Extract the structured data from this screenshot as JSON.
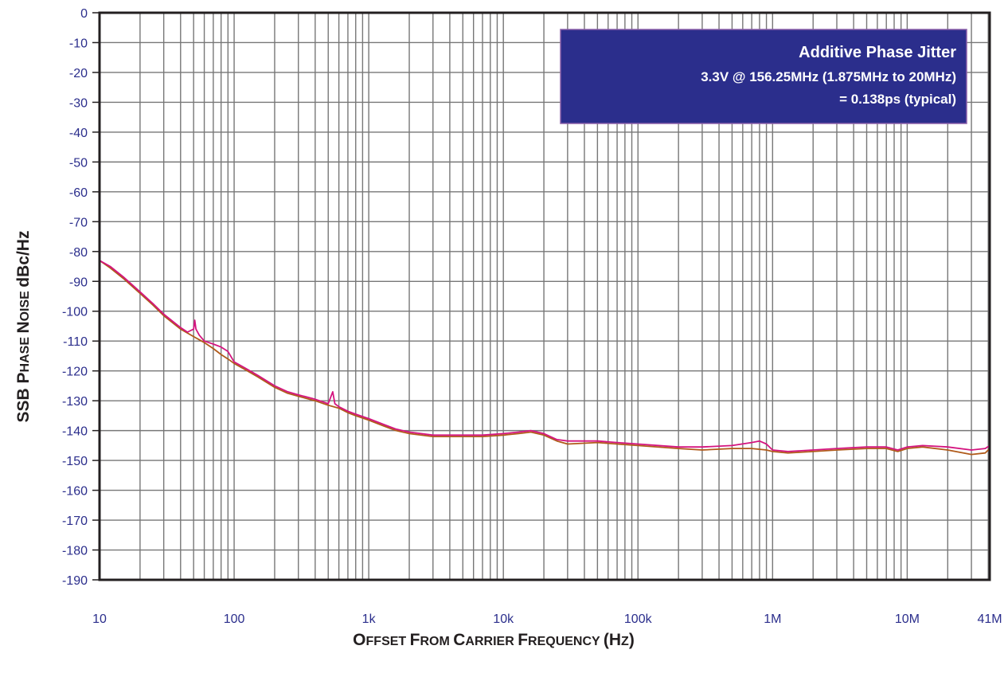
{
  "chart_data": {
    "type": "line",
    "title": "",
    "xlabel_parts": [
      {
        "text": "O",
        "big": true
      },
      {
        "text": "FFSET ",
        "big": false
      },
      {
        "text": "F",
        "big": true
      },
      {
        "text": "ROM ",
        "big": false
      },
      {
        "text": "C",
        "big": true
      },
      {
        "text": "ARRIER ",
        "big": false
      },
      {
        "text": "F",
        "big": true
      },
      {
        "text": "REQUENCY ",
        "big": false
      },
      {
        "text": "(H",
        "big": true
      },
      {
        "text": "Z",
        "big": false
      },
      {
        "text": ")",
        "big": true
      }
    ],
    "ylabel_parts": [
      {
        "text": "SSB P",
        "big": true
      },
      {
        "text": "HASE ",
        "big": false
      },
      {
        "text": "N",
        "big": true
      },
      {
        "text": "OISE ",
        "big": false
      },
      {
        "text": "dBc/Hz",
        "big": true
      }
    ],
    "x_scale": "log",
    "xlim": [
      10,
      41000000
    ],
    "ylim": [
      -190,
      0
    ],
    "grid": true,
    "x_ticks": [
      {
        "value": 10,
        "label": "10"
      },
      {
        "value": 100,
        "label": "100"
      },
      {
        "value": 1000,
        "label": "1k"
      },
      {
        "value": 10000,
        "label": "10k"
      },
      {
        "value": 100000,
        "label": "100k"
      },
      {
        "value": 1000000,
        "label": "1M"
      },
      {
        "value": 10000000,
        "label": "10M"
      },
      {
        "value": 41000000,
        "label": "41M"
      }
    ],
    "y_ticks": [
      0,
      -10,
      -20,
      -30,
      -40,
      -50,
      -60,
      -70,
      -80,
      -90,
      -100,
      -110,
      -120,
      -130,
      -140,
      -150,
      -160,
      -170,
      -180,
      -190
    ],
    "legend": {
      "placement": "top-right",
      "lines": [
        "Additive Phase Jitter",
        "3.3V @ 156.25MHz (1.875MHz to 20MHz)",
        "= 0.138ps (typical)"
      ],
      "background": "#2b2e8c",
      "text_color": "#ffffff"
    },
    "series": [
      {
        "color": "#d4147f",
        "points": [
          [
            10,
            -83
          ],
          [
            12,
            -85
          ],
          [
            15,
            -88.5
          ],
          [
            20,
            -93.5
          ],
          [
            25,
            -97.5
          ],
          [
            30,
            -101
          ],
          [
            40,
            -105.5
          ],
          [
            45,
            -107
          ],
          [
            50,
            -106
          ],
          [
            51,
            -103
          ],
          [
            52,
            -106
          ],
          [
            55,
            -108
          ],
          [
            60,
            -110
          ],
          [
            70,
            -111
          ],
          [
            80,
            -112
          ],
          [
            90,
            -113.5
          ],
          [
            100,
            -117
          ],
          [
            120,
            -119
          ],
          [
            150,
            -121.5
          ],
          [
            200,
            -125
          ],
          [
            250,
            -127
          ],
          [
            300,
            -128
          ],
          [
            400,
            -129.5
          ],
          [
            500,
            -131
          ],
          [
            540,
            -127
          ],
          [
            560,
            -131
          ],
          [
            600,
            -132
          ],
          [
            700,
            -133.5
          ],
          [
            800,
            -134.5
          ],
          [
            1000,
            -136
          ],
          [
            1300,
            -138
          ],
          [
            1600,
            -139.5
          ],
          [
            2000,
            -140.5
          ],
          [
            3000,
            -141.5
          ],
          [
            5000,
            -141.5
          ],
          [
            7000,
            -141.5
          ],
          [
            10000,
            -141
          ],
          [
            13000,
            -140.5
          ],
          [
            16000,
            -140
          ],
          [
            20000,
            -141
          ],
          [
            25000,
            -143
          ],
          [
            30000,
            -143.5
          ],
          [
            50000,
            -143.5
          ],
          [
            70000,
            -144
          ],
          [
            100000,
            -144.5
          ],
          [
            200000,
            -145.5
          ],
          [
            300000,
            -145.5
          ],
          [
            500000,
            -145
          ],
          [
            700000,
            -144
          ],
          [
            800000,
            -143.5
          ],
          [
            900000,
            -144.5
          ],
          [
            1000000,
            -146.5
          ],
          [
            1300000,
            -147
          ],
          [
            2000000,
            -146.5
          ],
          [
            3000000,
            -146
          ],
          [
            5000000,
            -145.5
          ],
          [
            7000000,
            -145.5
          ],
          [
            8500000,
            -146.5
          ],
          [
            10000000,
            -145.5
          ],
          [
            13000000,
            -145
          ],
          [
            20000000,
            -145.5
          ],
          [
            30000000,
            -146.5
          ],
          [
            38000000,
            -146
          ],
          [
            41000000,
            -145
          ]
        ]
      },
      {
        "color": "#b05a1a",
        "points": [
          [
            10,
            -83
          ],
          [
            12,
            -85.5
          ],
          [
            15,
            -89
          ],
          [
            20,
            -94
          ],
          [
            25,
            -98
          ],
          [
            30,
            -101.5
          ],
          [
            40,
            -106
          ],
          [
            50,
            -108.5
          ],
          [
            60,
            -110.5
          ],
          [
            70,
            -112.5
          ],
          [
            80,
            -114.5
          ],
          [
            90,
            -116
          ],
          [
            100,
            -117.5
          ],
          [
            120,
            -119.5
          ],
          [
            150,
            -122
          ],
          [
            200,
            -125.5
          ],
          [
            250,
            -127.5
          ],
          [
            300,
            -128.5
          ],
          [
            400,
            -130
          ],
          [
            500,
            -131.5
          ],
          [
            600,
            -132.5
          ],
          [
            700,
            -134
          ],
          [
            800,
            -135
          ],
          [
            1000,
            -136.5
          ],
          [
            1300,
            -138.5
          ],
          [
            1600,
            -140
          ],
          [
            2000,
            -141
          ],
          [
            3000,
            -142
          ],
          [
            5000,
            -142
          ],
          [
            7000,
            -142
          ],
          [
            10000,
            -141.5
          ],
          [
            13000,
            -141
          ],
          [
            16000,
            -140.5
          ],
          [
            20000,
            -141.5
          ],
          [
            25000,
            -143.5
          ],
          [
            30000,
            -144.5
          ],
          [
            50000,
            -144
          ],
          [
            70000,
            -144.5
          ],
          [
            100000,
            -145
          ],
          [
            200000,
            -146
          ],
          [
            300000,
            -146.5
          ],
          [
            500000,
            -146
          ],
          [
            700000,
            -146
          ],
          [
            900000,
            -146.5
          ],
          [
            1000000,
            -147
          ],
          [
            1300000,
            -147.5
          ],
          [
            2000000,
            -147
          ],
          [
            3000000,
            -146.5
          ],
          [
            5000000,
            -146
          ],
          [
            7000000,
            -146
          ],
          [
            8500000,
            -147
          ],
          [
            10000000,
            -146
          ],
          [
            13000000,
            -145.5
          ],
          [
            20000000,
            -146.5
          ],
          [
            30000000,
            -148
          ],
          [
            38000000,
            -147.5
          ],
          [
            41000000,
            -146
          ]
        ]
      }
    ]
  }
}
